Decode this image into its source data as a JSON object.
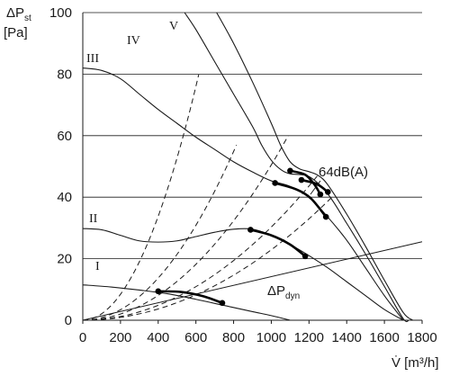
{
  "chart_data": {
    "type": "line",
    "xlim": [
      0,
      1800
    ],
    "ylim": [
      0,
      100
    ],
    "grid": "horizontal",
    "ylabel": {
      "main": "ΔP",
      "sub": "st",
      "unit": "[Pa]"
    },
    "xlabel": "V̇ [m³/h]",
    "x_ticks": [
      0,
      200,
      400,
      600,
      800,
      1000,
      1200,
      1400,
      1600,
      1800
    ],
    "y_ticks": [
      0,
      20,
      40,
      60,
      80,
      100
    ],
    "series": [
      {
        "name": "I",
        "points": [
          [
            0,
            11.5
          ],
          [
            150,
            10.8
          ],
          [
            300,
            9.8
          ],
          [
            450,
            8.6
          ],
          [
            600,
            6.8
          ],
          [
            750,
            4.8
          ],
          [
            900,
            2.8
          ],
          [
            1000,
            1.5
          ],
          [
            1100,
            0
          ]
        ]
      },
      {
        "name": "II",
        "points": [
          [
            0,
            29.8
          ],
          [
            100,
            29.4
          ],
          [
            200,
            27.6
          ],
          [
            300,
            25.8
          ],
          [
            400,
            25.4
          ],
          [
            500,
            25.8
          ],
          [
            600,
            27.2
          ],
          [
            700,
            28.6
          ],
          [
            800,
            29.6
          ],
          [
            900,
            29.6
          ],
          [
            1000,
            27.6
          ],
          [
            1100,
            24.6
          ],
          [
            1200,
            21
          ],
          [
            1300,
            17
          ],
          [
            1400,
            12.5
          ],
          [
            1500,
            8
          ],
          [
            1600,
            3.5
          ],
          [
            1700,
            0
          ]
        ]
      },
      {
        "name": "III",
        "points": [
          [
            0,
            82
          ],
          [
            100,
            81.2
          ],
          [
            200,
            78.5
          ],
          [
            300,
            73.5
          ],
          [
            400,
            68.5
          ],
          [
            500,
            64
          ],
          [
            600,
            59.5
          ],
          [
            700,
            55.5
          ],
          [
            800,
            51.5
          ],
          [
            900,
            48.2
          ],
          [
            1000,
            45.3
          ],
          [
            1100,
            43.5
          ],
          [
            1200,
            40
          ],
          [
            1300,
            33.5
          ],
          [
            1400,
            26
          ],
          [
            1500,
            17
          ],
          [
            1600,
            8
          ],
          [
            1700,
            0
          ]
        ]
      },
      {
        "name": "IV",
        "points": [
          [
            540,
            100
          ],
          [
            600,
            94.5
          ],
          [
            700,
            84
          ],
          [
            800,
            73.5
          ],
          [
            900,
            63
          ],
          [
            950,
            56.8
          ],
          [
            1000,
            52
          ],
          [
            1050,
            49
          ],
          [
            1100,
            47.6
          ],
          [
            1200,
            46.7
          ],
          [
            1300,
            41
          ],
          [
            1400,
            31.5
          ],
          [
            1500,
            21.5
          ],
          [
            1600,
            11
          ],
          [
            1700,
            0.5
          ],
          [
            1730,
            0
          ]
        ]
      },
      {
        "name": "V",
        "points": [
          [
            710,
            100
          ],
          [
            800,
            90
          ],
          [
            900,
            77.5
          ],
          [
            1000,
            64
          ],
          [
            1050,
            56.8
          ],
          [
            1100,
            51.5
          ],
          [
            1150,
            49.2
          ],
          [
            1200,
            48.3
          ],
          [
            1250,
            47
          ],
          [
            1300,
            44
          ],
          [
            1400,
            34.5
          ],
          [
            1500,
            24
          ],
          [
            1600,
            13
          ],
          [
            1700,
            2.5
          ],
          [
            1750,
            0
          ]
        ]
      }
    ],
    "operating_points": [
      [
        400,
        9.4
      ],
      [
        740,
        5.6
      ],
      [
        890,
        29.4
      ],
      [
        1180,
        20.8
      ],
      [
        1020,
        44.6
      ],
      [
        1290,
        33.6
      ],
      [
        1100,
        48.6
      ],
      [
        1260,
        40.9
      ],
      [
        1160,
        45.6
      ],
      [
        1300,
        41.7
      ]
    ],
    "highlighted_segments": [
      [
        [
          400,
          9.4
        ],
        [
          520,
          9.2
        ],
        [
          640,
          7.8
        ],
        [
          740,
          5.6
        ]
      ],
      [
        [
          890,
          29.4
        ],
        [
          1000,
          27.6
        ],
        [
          1100,
          24.6
        ],
        [
          1180,
          20.8
        ]
      ],
      [
        [
          1020,
          44.6
        ],
        [
          1130,
          42.6
        ],
        [
          1210,
          39.6
        ],
        [
          1290,
          33.6
        ]
      ],
      [
        [
          1100,
          48.6
        ],
        [
          1180,
          47.3
        ],
        [
          1230,
          44
        ],
        [
          1260,
          40.9
        ]
      ],
      [
        [
          1160,
          45.6
        ],
        [
          1240,
          44.3
        ],
        [
          1300,
          41.7
        ]
      ]
    ],
    "dashed_parabolas": [
      {
        "k": 0.0002111,
        "x_end": 615
      },
      {
        "k": 8.57e-05,
        "x_end": 815
      },
      {
        "k": 5.05e-05,
        "x_end": 1090
      },
      {
        "k": 3.03e-05,
        "x_end": 1245
      },
      {
        "k": 2.29e-05,
        "x_end": 1320
      }
    ],
    "dynamic_pressure_line": [
      [
        0,
        0
      ],
      [
        1800,
        25.5
      ]
    ],
    "annotations": {
      "noise": "64dB(A)",
      "dyn_main": "ΔP",
      "dyn_sub": "dyn"
    }
  }
}
